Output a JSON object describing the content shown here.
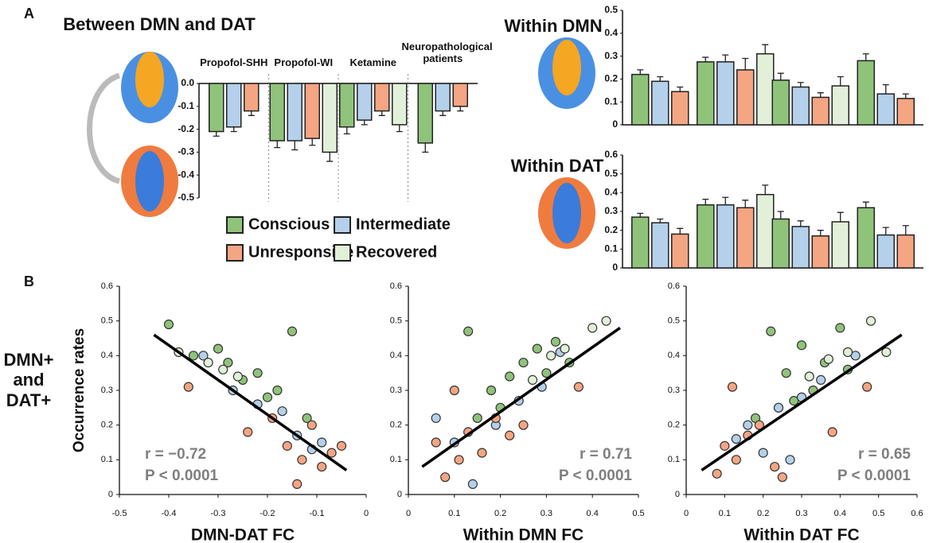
{
  "panels": [
    "A",
    "B"
  ],
  "row_label": "DMN+ and DAT+",
  "chart_data": [
    {
      "type": "bar",
      "title": "Between DMN and DAT",
      "categories": [
        "Propofol-SHH",
        "Propofol-WI",
        "Ketamine",
        "Neuropathological patients"
      ],
      "ylim": [
        -0.5,
        0
      ],
      "yticks": [
        {
          "value": 0,
          "label": "0.0"
        },
        -0.1,
        -0.2,
        -0.3,
        -0.4,
        -0.5
      ],
      "series": [
        {
          "name": "Conscious",
          "color": "#8fc37a",
          "values": [
            -0.21,
            -0.25,
            -0.19,
            -0.26
          ],
          "errors": [
            0.02,
            0.03,
            0.03,
            0.04
          ]
        },
        {
          "name": "Intermediate",
          "color": "#b4d0ea",
          "values": [
            -0.19,
            -0.25,
            -0.16,
            -0.12
          ],
          "errors": [
            0.02,
            0.04,
            0.02,
            0.02
          ]
        },
        {
          "name": "Unresponsive",
          "color": "#f4a582",
          "values": [
            -0.12,
            -0.24,
            -0.12,
            -0.1
          ],
          "errors": [
            0.02,
            0.03,
            0.02,
            0.02
          ]
        },
        {
          "name": "Recovered",
          "color": "#e2f0d9",
          "values": [
            null,
            -0.3,
            -0.18,
            null
          ],
          "errors": [
            null,
            0.04,
            0.03,
            null
          ]
        }
      ]
    },
    {
      "type": "bar",
      "title": "Within DMN",
      "categories": [
        null,
        null,
        null,
        null
      ],
      "ylim": [
        0,
        0.5
      ],
      "yticks": [
        0,
        0.1,
        0.2,
        0.3,
        0.4,
        0.5
      ],
      "series": [
        {
          "color": "#8fc37a",
          "values": [
            0.22,
            0.275,
            0.195,
            0.28
          ],
          "errors": [
            0.02,
            0.02,
            0.03,
            0.03
          ]
        },
        {
          "color": "#b4d0ea",
          "values": [
            0.19,
            0.275,
            0.165,
            0.135
          ],
          "errors": [
            0.02,
            0.03,
            0.02,
            0.04
          ]
        },
        {
          "color": "#f4a582",
          "values": [
            0.145,
            0.24,
            0.12,
            0.115
          ],
          "errors": [
            0.02,
            0.05,
            0.02,
            0.02
          ]
        },
        {
          "color": "#e2f0d9",
          "values": [
            null,
            0.31,
            0.17,
            null
          ],
          "errors": [
            null,
            0.04,
            0.04,
            null
          ]
        }
      ]
    },
    {
      "type": "bar",
      "title": "Within DAT",
      "categories": [
        null,
        null,
        null,
        null
      ],
      "ylim": [
        0,
        0.6
      ],
      "yticks": [
        0,
        0.1,
        0.2,
        0.3,
        0.4,
        0.5,
        0.6
      ],
      "series": [
        {
          "color": "#8fc37a",
          "values": [
            0.27,
            0.335,
            0.26,
            0.32
          ],
          "errors": [
            0.02,
            0.03,
            0.04,
            0.03
          ]
        },
        {
          "color": "#b4d0ea",
          "values": [
            0.24,
            0.335,
            0.22,
            0.175
          ],
          "errors": [
            0.02,
            0.04,
            0.03,
            0.04
          ]
        },
        {
          "color": "#f4a582",
          "values": [
            0.18,
            0.32,
            0.17,
            0.175
          ],
          "errors": [
            0.03,
            0.04,
            0.03,
            0.05
          ]
        },
        {
          "color": "#e2f0d9",
          "values": [
            null,
            0.39,
            0.245,
            null
          ],
          "errors": [
            null,
            0.05,
            0.05,
            null
          ]
        }
      ]
    },
    {
      "type": "scatter",
      "xlabel": "DMN-DAT FC",
      "ylabel": "Occurrence rates",
      "xlim": [
        -0.5,
        0
      ],
      "xticks": [
        -0.5,
        -0.4,
        -0.3,
        -0.2,
        -0.1,
        0
      ],
      "ylim": [
        0,
        0.6
      ],
      "yticks": [
        0,
        0.1,
        0.2,
        0.3,
        0.4,
        0.5,
        0.6
      ],
      "annotations": [
        "r = −0.72",
        "P < 0.0001"
      ],
      "fit": {
        "x": [
          -0.43,
          -0.04
        ],
        "y": [
          0.46,
          0.07
        ]
      },
      "series": [
        {
          "color": "#8fc37a",
          "x": [
            -0.4,
            -0.35,
            -0.3,
            -0.28,
            -0.25,
            -0.22,
            -0.2,
            -0.18,
            -0.15,
            -0.12
          ],
          "y": [
            0.49,
            0.4,
            0.42,
            0.38,
            0.33,
            0.35,
            0.28,
            0.3,
            0.47,
            0.22
          ]
        },
        {
          "color": "#b4d0ea",
          "x": [
            -0.33,
            -0.27,
            -0.22,
            -0.17,
            -0.14,
            -0.11,
            -0.09
          ],
          "y": [
            0.4,
            0.3,
            0.26,
            0.24,
            0.17,
            0.13,
            0.15
          ]
        },
        {
          "color": "#f4a582",
          "x": [
            -0.36,
            -0.24,
            -0.19,
            -0.16,
            -0.13,
            -0.11,
            -0.09,
            -0.07,
            -0.05,
            -0.14
          ],
          "y": [
            0.31,
            0.18,
            0.22,
            0.14,
            0.1,
            0.2,
            0.08,
            0.12,
            0.14,
            0.03
          ]
        },
        {
          "color": "#e2f0d9",
          "x": [
            -0.38,
            -0.32,
            -0.29,
            -0.26
          ],
          "y": [
            0.41,
            0.38,
            0.36,
            0.34
          ]
        }
      ]
    },
    {
      "type": "scatter",
      "xlabel": "Within DMN FC",
      "xlim": [
        0,
        0.5
      ],
      "xticks": [
        0,
        0.1,
        0.2,
        0.3,
        0.4,
        0.5
      ],
      "ylim": [
        0,
        0.6
      ],
      "yticks": [
        0,
        0.1,
        0.2,
        0.3,
        0.4,
        0.5,
        0.6
      ],
      "annotations": [
        "r = 0.71",
        "P < 0.0001"
      ],
      "fit": {
        "x": [
          0.03,
          0.46
        ],
        "y": [
          0.08,
          0.48
        ]
      },
      "series": [
        {
          "color": "#8fc37a",
          "x": [
            0.13,
            0.18,
            0.22,
            0.25,
            0.28,
            0.3,
            0.32,
            0.2,
            0.15,
            0.35
          ],
          "y": [
            0.47,
            0.3,
            0.34,
            0.38,
            0.42,
            0.35,
            0.44,
            0.25,
            0.22,
            0.38
          ]
        },
        {
          "color": "#b4d0ea",
          "x": [
            0.06,
            0.1,
            0.14,
            0.19,
            0.24,
            0.29,
            0.33
          ],
          "y": [
            0.22,
            0.15,
            0.03,
            0.2,
            0.27,
            0.31,
            0.41
          ]
        },
        {
          "color": "#f4a582",
          "x": [
            0.06,
            0.08,
            0.11,
            0.13,
            0.16,
            0.19,
            0.22,
            0.25,
            0.37,
            0.1
          ],
          "y": [
            0.15,
            0.05,
            0.1,
            0.18,
            0.12,
            0.22,
            0.17,
            0.2,
            0.31,
            0.3
          ]
        },
        {
          "color": "#e2f0d9",
          "x": [
            0.27,
            0.31,
            0.34,
            0.4,
            0.43
          ],
          "y": [
            0.33,
            0.4,
            0.42,
            0.48,
            0.5
          ]
        }
      ]
    },
    {
      "type": "scatter",
      "xlabel": "Within DAT FC",
      "xlim": [
        0,
        0.6
      ],
      "xticks": [
        0,
        0.1,
        0.2,
        0.3,
        0.4,
        0.5,
        0.6
      ],
      "ylim": [
        0,
        0.6
      ],
      "yticks": [
        0,
        0.1,
        0.2,
        0.3,
        0.4,
        0.5,
        0.6
      ],
      "annotations": [
        "r = 0.65",
        "P < 0.0001"
      ],
      "fit": {
        "x": [
          0.04,
          0.56
        ],
        "y": [
          0.07,
          0.46
        ]
      },
      "series": [
        {
          "color": "#8fc37a",
          "x": [
            0.22,
            0.26,
            0.3,
            0.33,
            0.36,
            0.4,
            0.28,
            0.24,
            0.42,
            0.18
          ],
          "y": [
            0.47,
            0.35,
            0.43,
            0.3,
            0.38,
            0.48,
            0.27,
            0.25,
            0.36,
            0.22
          ]
        },
        {
          "color": "#b4d0ea",
          "x": [
            0.13,
            0.16,
            0.2,
            0.24,
            0.27,
            0.3,
            0.35,
            0.44
          ],
          "y": [
            0.16,
            0.2,
            0.12,
            0.25,
            0.1,
            0.28,
            0.33,
            0.4
          ]
        },
        {
          "color": "#f4a582",
          "x": [
            0.08,
            0.1,
            0.13,
            0.16,
            0.19,
            0.23,
            0.25,
            0.38,
            0.47,
            0.12
          ],
          "y": [
            0.06,
            0.14,
            0.1,
            0.17,
            0.2,
            0.08,
            0.05,
            0.18,
            0.31,
            0.31
          ]
        },
        {
          "color": "#e2f0d9",
          "x": [
            0.32,
            0.37,
            0.42,
            0.48,
            0.52
          ],
          "y": [
            0.34,
            0.39,
            0.41,
            0.5,
            0.41
          ]
        }
      ]
    }
  ]
}
